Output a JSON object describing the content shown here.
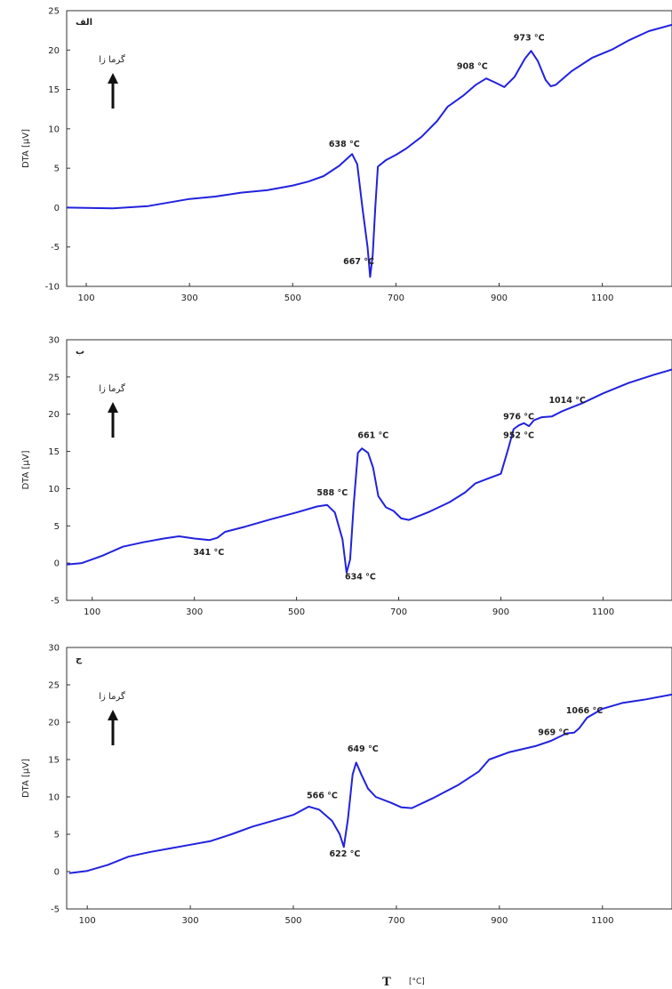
{
  "x_axis": {
    "symbol": "T",
    "unit": "[°C]"
  },
  "colors": {
    "curve": "#2222dd",
    "frame": "#333333",
    "text": "#222222"
  },
  "chart_data": [
    {
      "type": "line",
      "panel_tag": "الف",
      "exo_label": "گرما زا",
      "ylabel": "DTA [µV]",
      "xlim": [
        62,
        1235
      ],
      "ylim": [
        -10,
        25
      ],
      "yticks": [
        -10,
        -5,
        0,
        5,
        10,
        15,
        20,
        25
      ],
      "xticks": [
        100,
        300,
        500,
        700,
        900,
        1100
      ],
      "series": [
        {
          "points": [
            [
              62,
              0.0
            ],
            [
              150,
              -0.1
            ],
            [
              220,
              0.2
            ],
            [
              300,
              1.1
            ],
            [
              350,
              1.4
            ],
            [
              400,
              1.9
            ],
            [
              450,
              2.2
            ],
            [
              500,
              2.8
            ],
            [
              530,
              3.3
            ],
            [
              560,
              4.0
            ],
            [
              590,
              5.3
            ],
            [
              615,
              6.8
            ],
            [
              625,
              5.5
            ],
            [
              635,
              0
            ],
            [
              645,
              -5
            ],
            [
              650,
              -8.8
            ],
            [
              655,
              -6
            ],
            [
              660,
              0
            ],
            [
              665,
              5.2
            ],
            [
              680,
              6.0
            ],
            [
              700,
              6.7
            ],
            [
              720,
              7.5
            ],
            [
              750,
              9.0
            ],
            [
              780,
              11.0
            ],
            [
              800,
              12.8
            ],
            [
              830,
              14.2
            ],
            [
              855,
              15.6
            ],
            [
              875,
              16.4
            ],
            [
              895,
              15.8
            ],
            [
              910,
              15.3
            ],
            [
              930,
              16.6
            ],
            [
              950,
              18.9
            ],
            [
              962,
              19.9
            ],
            [
              975,
              18.6
            ],
            [
              990,
              16.2
            ],
            [
              1000,
              15.4
            ],
            [
              1010,
              15.6
            ],
            [
              1040,
              17.3
            ],
            [
              1080,
              19.0
            ],
            [
              1120,
              20.1
            ],
            [
              1150,
              21.2
            ],
            [
              1190,
              22.4
            ],
            [
              1235,
              23.2
            ]
          ]
        }
      ],
      "annotations": [
        {
          "text": "638 °C",
          "x": 600,
          "y": 7.7
        },
        {
          "text": "667 °C",
          "x": 628,
          "y": -7.2
        },
        {
          "text": "908 °C",
          "x": 848,
          "y": 17.6
        },
        {
          "text": "973 °C",
          "x": 958,
          "y": 21.2
        }
      ]
    },
    {
      "type": "line",
      "panel_tag": "ب",
      "exo_label": "گرما زا",
      "ylabel": "DTA [µV]",
      "xlim": [
        50,
        1235
      ],
      "ylim": [
        -5,
        30
      ],
      "yticks": [
        -5,
        0,
        5,
        10,
        15,
        20,
        25,
        30
      ],
      "xticks": [
        100,
        300,
        500,
        700,
        900,
        1100
      ],
      "series": [
        {
          "points": [
            [
              50,
              -0.2
            ],
            [
              80,
              0.0
            ],
            [
              120,
              1.0
            ],
            [
              160,
              2.2
            ],
            [
              200,
              2.8
            ],
            [
              240,
              3.3
            ],
            [
              270,
              3.6
            ],
            [
              300,
              3.3
            ],
            [
              330,
              3.1
            ],
            [
              345,
              3.4
            ],
            [
              360,
              4.2
            ],
            [
              400,
              4.9
            ],
            [
              450,
              5.9
            ],
            [
              500,
              6.8
            ],
            [
              540,
              7.6
            ],
            [
              560,
              7.8
            ],
            [
              575,
              6.8
            ],
            [
              590,
              3.2
            ],
            [
              598,
              -1.3
            ],
            [
              605,
              0.5
            ],
            [
              612,
              8.0
            ],
            [
              620,
              14.8
            ],
            [
              628,
              15.4
            ],
            [
              640,
              14.8
            ],
            [
              650,
              12.8
            ],
            [
              660,
              9.0
            ],
            [
              675,
              7.5
            ],
            [
              690,
              7.0
            ],
            [
              705,
              6.0
            ],
            [
              720,
              5.8
            ],
            [
              760,
              6.9
            ],
            [
              800,
              8.2
            ],
            [
              830,
              9.5
            ],
            [
              850,
              10.7
            ],
            [
              880,
              11.5
            ],
            [
              900,
              12.0
            ],
            [
              915,
              15.5
            ],
            [
              925,
              18.0
            ],
            [
              935,
              18.5
            ],
            [
              945,
              18.8
            ],
            [
              955,
              18.4
            ],
            [
              965,
              19.2
            ],
            [
              980,
              19.6
            ],
            [
              1000,
              19.7
            ],
            [
              1020,
              20.4
            ],
            [
              1060,
              21.5
            ],
            [
              1100,
              22.8
            ],
            [
              1150,
              24.2
            ],
            [
              1200,
              25.3
            ],
            [
              1235,
              26.0
            ]
          ]
        }
      ],
      "annotations": [
        {
          "text": "341 °C",
          "x": 328,
          "y": 1.1
        },
        {
          "text": "588 °C",
          "x": 570,
          "y": 9.1
        },
        {
          "text": "634 °C",
          "x": 625,
          "y": -2.2
        },
        {
          "text": "661 °C",
          "x": 650,
          "y": 16.8
        },
        {
          "text": "952 °C",
          "x": 935,
          "y": 16.8
        },
        {
          "text": "976 °C",
          "x": 935,
          "y": 19.3
        },
        {
          "text": "1014 °C",
          "x": 1030,
          "y": 21.5
        }
      ]
    },
    {
      "type": "line",
      "panel_tag": "ج",
      "exo_label": "گرما زا",
      "ylabel": "DTA [µV]",
      "xlim": [
        60,
        1235
      ],
      "ylim": [
        -5,
        30
      ],
      "yticks": [
        -5,
        0,
        5,
        10,
        15,
        20,
        25,
        30
      ],
      "xticks": [
        100,
        300,
        500,
        700,
        900,
        1100
      ],
      "series": [
        {
          "points": [
            [
              65,
              -0.2
            ],
            [
              100,
              0.1
            ],
            [
              140,
              0.9
            ],
            [
              180,
              2.0
            ],
            [
              220,
              2.6
            ],
            [
              260,
              3.1
            ],
            [
              300,
              3.6
            ],
            [
              340,
              4.1
            ],
            [
              380,
              5.0
            ],
            [
              420,
              6.0
            ],
            [
              460,
              6.8
            ],
            [
              500,
              7.6
            ],
            [
              530,
              8.7
            ],
            [
              550,
              8.3
            ],
            [
              575,
              6.8
            ],
            [
              590,
              5.0
            ],
            [
              598,
              3.3
            ],
            [
              606,
              7.0
            ],
            [
              615,
              13.0
            ],
            [
              622,
              14.6
            ],
            [
              632,
              13.0
            ],
            [
              645,
              11.1
            ],
            [
              660,
              10.0
            ],
            [
              690,
              9.2
            ],
            [
              710,
              8.6
            ],
            [
              730,
              8.5
            ],
            [
              770,
              9.8
            ],
            [
              820,
              11.6
            ],
            [
              860,
              13.4
            ],
            [
              880,
              15.0
            ],
            [
              920,
              16.0
            ],
            [
              970,
              16.8
            ],
            [
              1000,
              17.5
            ],
            [
              1030,
              18.5
            ],
            [
              1045,
              18.6
            ],
            [
              1055,
              19.2
            ],
            [
              1070,
              20.6
            ],
            [
              1100,
              21.8
            ],
            [
              1140,
              22.6
            ],
            [
              1180,
              23.0
            ],
            [
              1235,
              23.7
            ]
          ]
        }
      ],
      "annotations": [
        {
          "text": "566 °C",
          "x": 556,
          "y": 9.8
        },
        {
          "text": "622 °C",
          "x": 600,
          "y": 2.0
        },
        {
          "text": "649 °C",
          "x": 635,
          "y": 16.1
        },
        {
          "text": "969 °C",
          "x": 1005,
          "y": 18.3
        },
        {
          "text": "1066 °C",
          "x": 1065,
          "y": 21.2
        }
      ]
    }
  ]
}
